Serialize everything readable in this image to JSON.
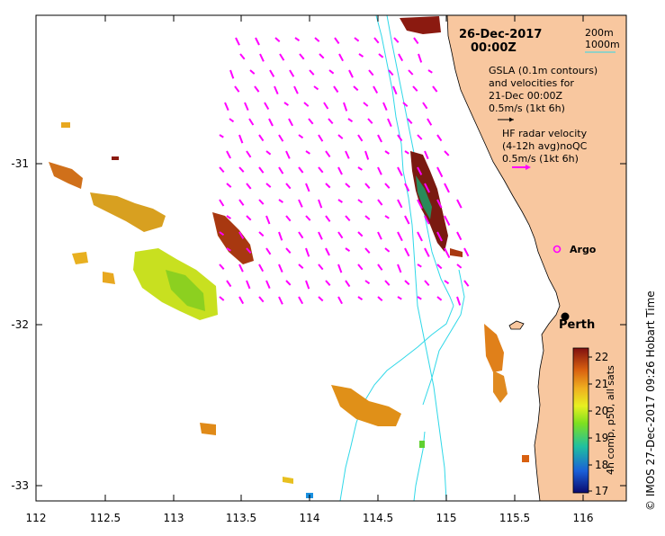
{
  "title": {
    "date": "26-Dec-2017",
    "time": "00:00Z"
  },
  "contour_legend": {
    "label_200": "200m",
    "label_1000": "1000m",
    "color_1000": "#30d8e8"
  },
  "gsla_legend": {
    "line1": "GSLA (0.1m contours)",
    "line2": "and velocities for",
    "line3": "21-Dec 00:00Z",
    "line4": "0.5m/s (1kt 6h)"
  },
  "hf_legend": {
    "line1": "HF radar velocity",
    "line2": "(4-12h avg)noQC",
    "line3": "0.5m/s (1kt 6h)",
    "color": "#ff00ff"
  },
  "places": {
    "argo": "Argo",
    "perth": "Perth"
  },
  "axes": {
    "x_ticks": [
      "112",
      "112.5",
      "113",
      "113.5",
      "114",
      "114.5",
      "115",
      "115.5",
      "116"
    ],
    "y_ticks": [
      "-31",
      "-32",
      "-33"
    ]
  },
  "colorbar": {
    "label": "4h comp, p50, all sats",
    "ticks": [
      "22",
      "21",
      "20",
      "19",
      "18",
      "17"
    ]
  },
  "credit": "© IMOS 27-Dec-2017 09:26 Hobart Time",
  "colors": {
    "land": "#f8c79f",
    "hf_vectors": "#ff00ff",
    "isobath": "#30d8e8"
  }
}
